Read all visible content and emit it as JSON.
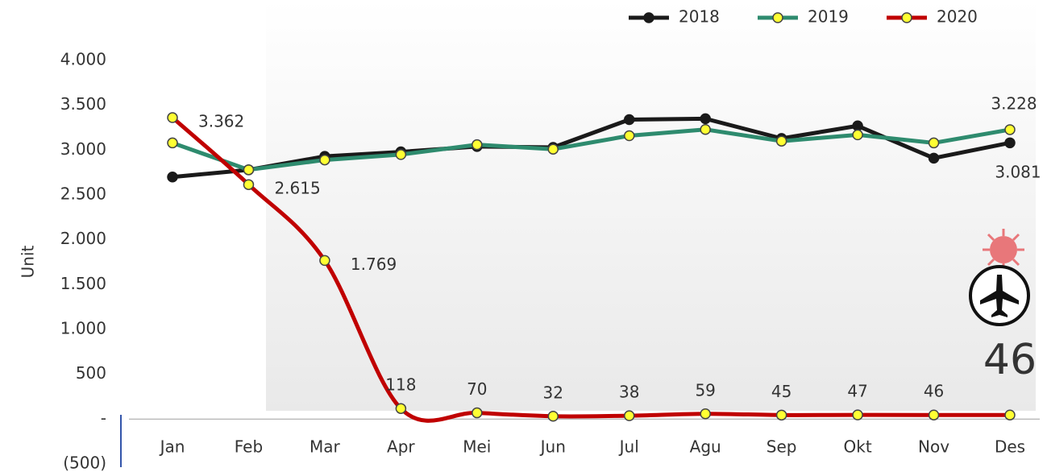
{
  "chart_data": {
    "type": "line",
    "y_label": "Unit",
    "categories": [
      "Jan",
      "Feb",
      "Mar",
      "Apr",
      "Mei",
      "Jun",
      "Jul",
      "Agu",
      "Sep",
      "Okt",
      "Nov",
      "Des"
    ],
    "series": [
      {
        "name": "2018",
        "color": "#1a1a1a",
        "marker": "#1a1a1a",
        "values": [
          2700,
          2780,
          2930,
          2980,
          3040,
          3030,
          3340,
          3350,
          3130,
          3270,
          2910,
          3081
        ],
        "value_labels": [
          null,
          null,
          null,
          null,
          null,
          null,
          null,
          null,
          null,
          null,
          null,
          "3.081"
        ]
      },
      {
        "name": "2019",
        "color": "#2e8b6e",
        "marker": "#ffff33",
        "values": [
          3080,
          2780,
          2890,
          2950,
          3060,
          3010,
          3160,
          3230,
          3100,
          3170,
          3080,
          3228
        ],
        "value_labels": [
          null,
          null,
          null,
          null,
          null,
          null,
          null,
          null,
          null,
          null,
          null,
          "3.228"
        ]
      },
      {
        "name": "2020",
        "color": "#c00000",
        "marker": "#ffff33",
        "values": [
          3362,
          2615,
          1769,
          118,
          70,
          32,
          38,
          59,
          45,
          47,
          46,
          46
        ],
        "value_labels": [
          "3.362",
          "2.615",
          "1.769",
          "118",
          "70",
          "32",
          "38",
          "59",
          "45",
          "47",
          "46",
          "46"
        ]
      }
    ],
    "ylim": [
      -500,
      4000
    ],
    "yticks": [
      {
        "value": -500,
        "label": "(500)"
      },
      {
        "value": 0,
        "label": "-"
      },
      500,
      {
        "value": 1000,
        "label": "1.000"
      },
      {
        "value": 1500,
        "label": "1.500"
      },
      {
        "value": 2000,
        "label": "2.000"
      },
      {
        "value": 2500,
        "label": "2.500"
      },
      {
        "value": 3000,
        "label": "3.000"
      },
      {
        "value": 3500,
        "label": "3.500"
      },
      {
        "value": 4000,
        "label": "4.000"
      }
    ],
    "legend": "top-right",
    "smooth": true
  }
}
